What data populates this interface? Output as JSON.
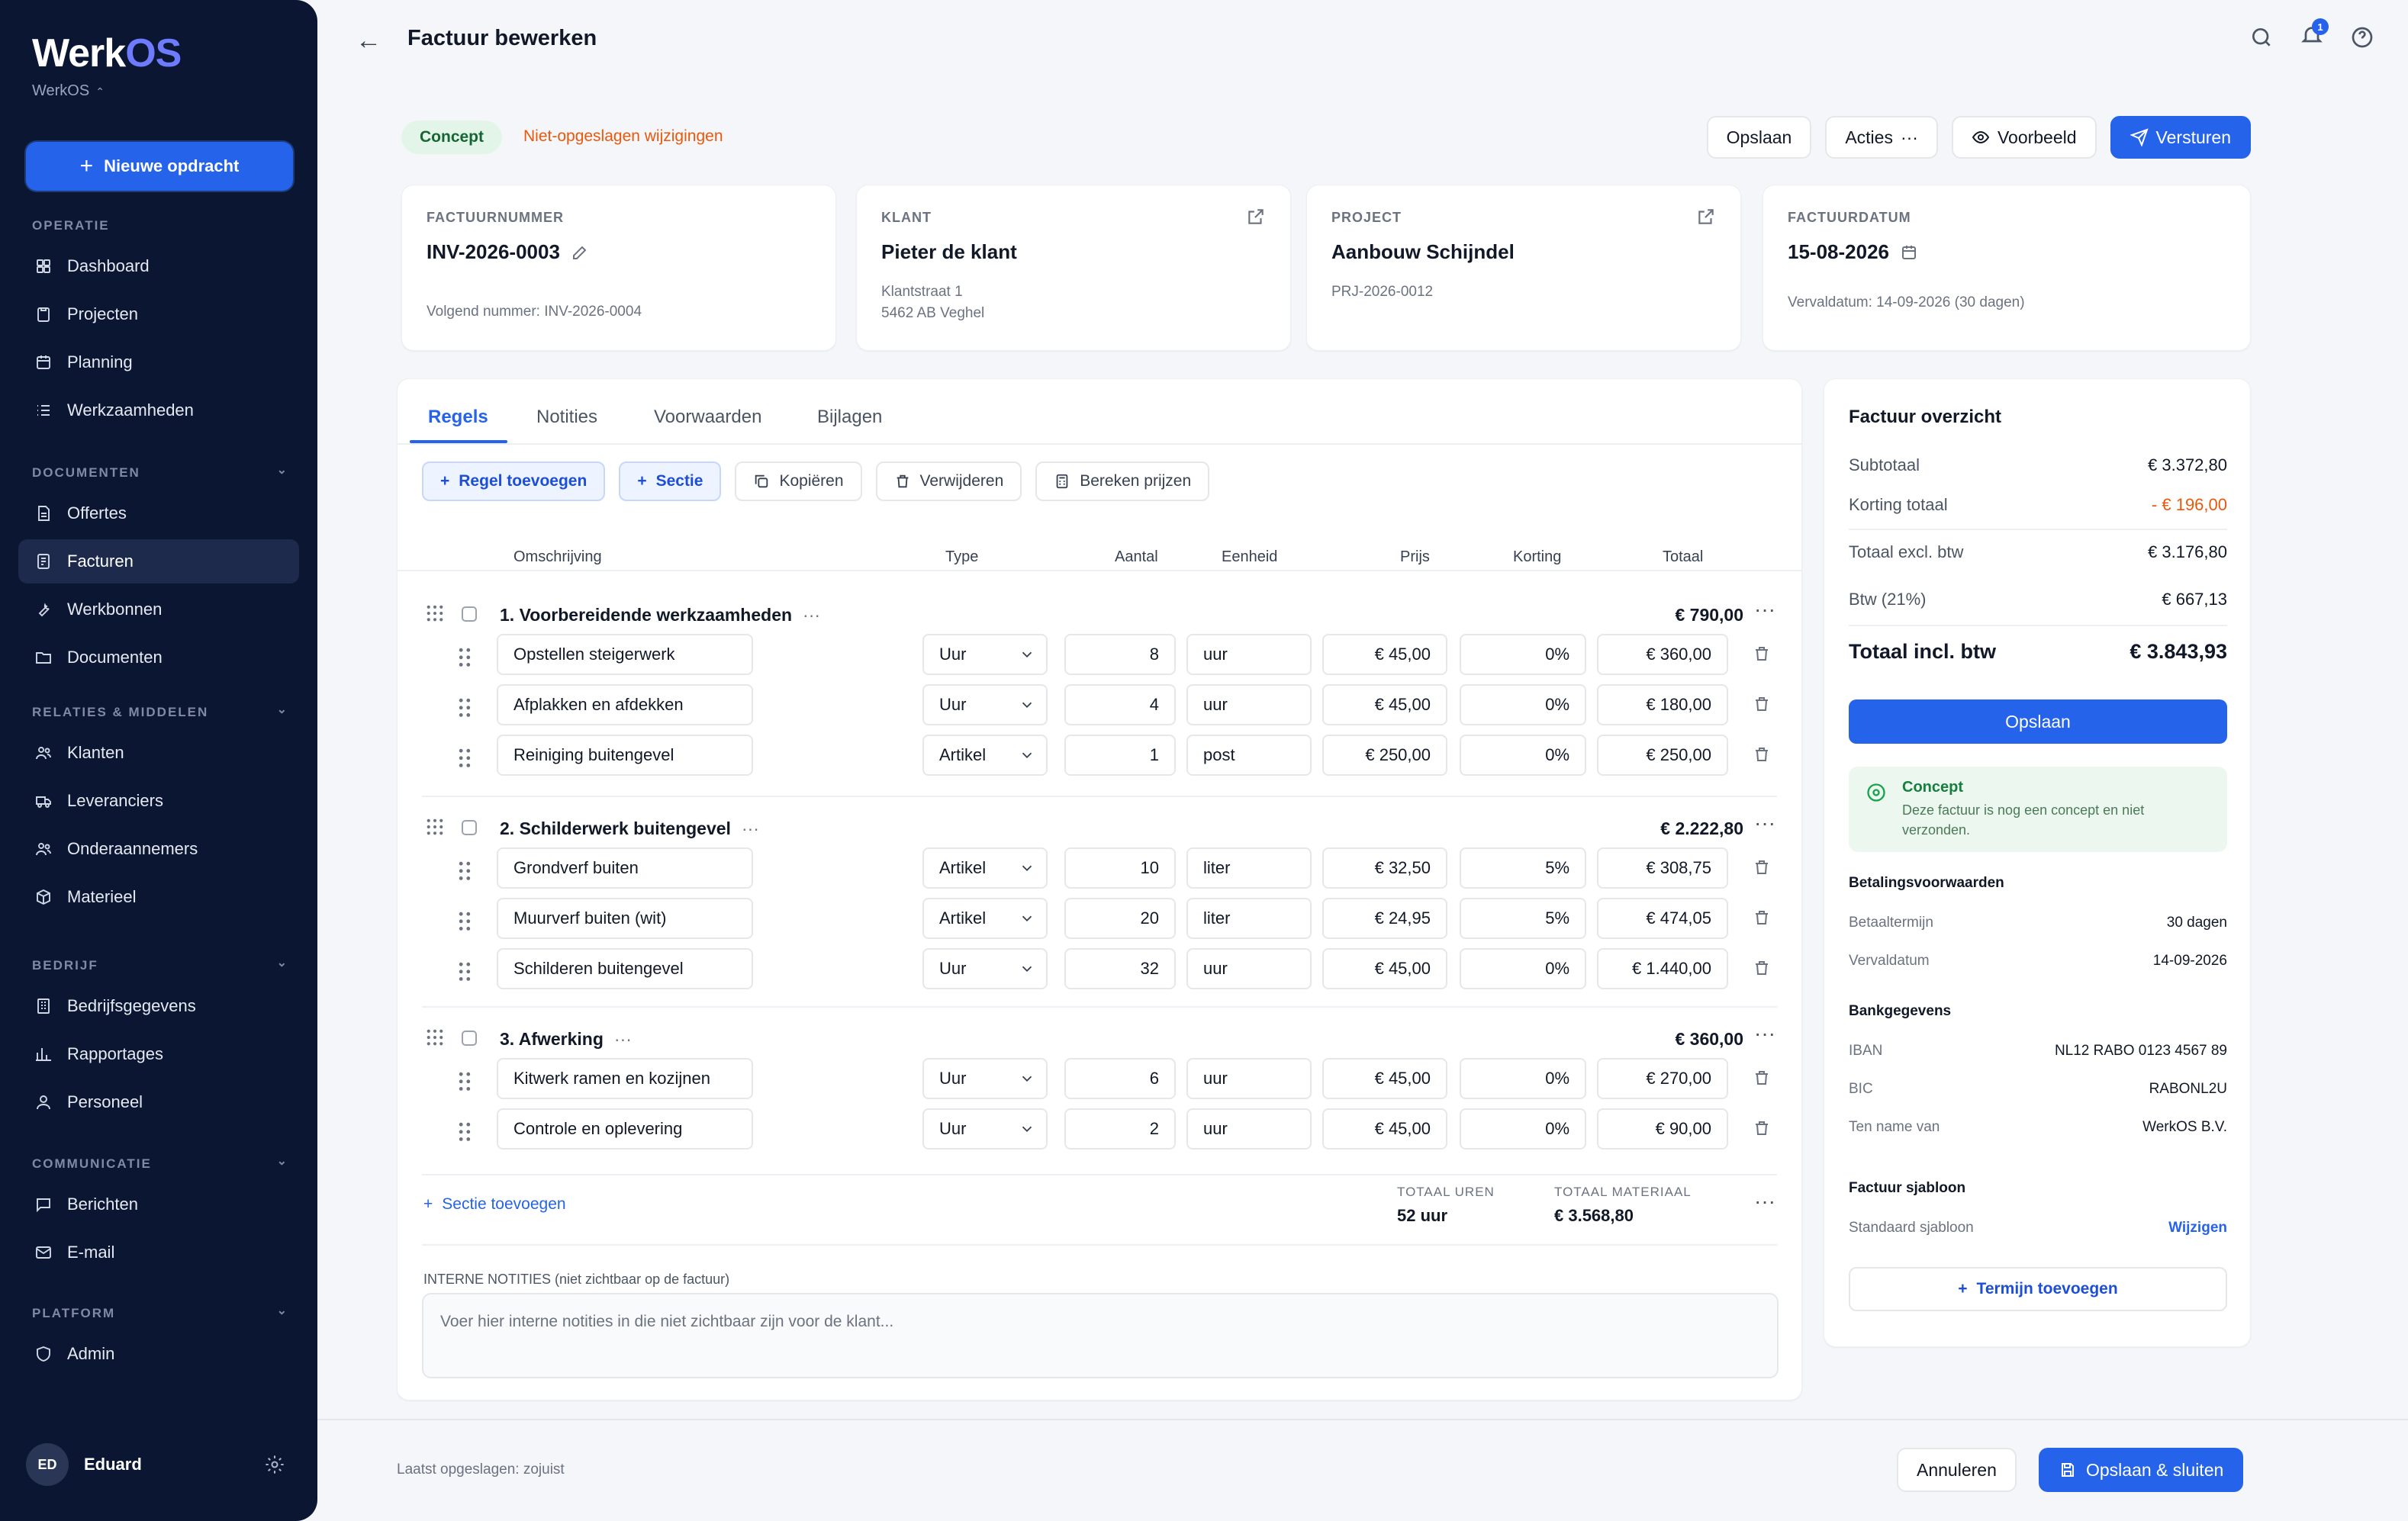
{
  "brand": {
    "logo_a": "Werk",
    "logo_b": "OS",
    "workspace": "WerkOS"
  },
  "sidebar": {
    "new_button": "Nieuwe opdracht",
    "sections": [
      {
        "title": "OPERATIE",
        "items": [
          {
            "label": "Dashboard",
            "icon": "grid-icon"
          },
          {
            "label": "Projecten",
            "icon": "clipboard-icon"
          },
          {
            "label": "Planning",
            "icon": "calendar-icon"
          },
          {
            "label": "Werkzaamheden",
            "icon": "list-icon"
          }
        ]
      },
      {
        "title": "DOCUMENTEN",
        "items": [
          {
            "label": "Offertes",
            "icon": "document-icon"
          },
          {
            "label": "Facturen",
            "icon": "invoice-icon"
          },
          {
            "label": "Werkbonnen",
            "icon": "wrench-icon"
          },
          {
            "label": "Documenten",
            "icon": "folder-icon"
          }
        ]
      },
      {
        "title": "RELATIES & MIDDELEN",
        "items": [
          {
            "label": "Klanten",
            "icon": "users-icon"
          },
          {
            "label": "Leveranciers",
            "icon": "truck-icon"
          },
          {
            "label": "Onderaannemers",
            "icon": "users-icon"
          },
          {
            "label": "Materieel",
            "icon": "box-icon"
          }
        ]
      },
      {
        "title": "BEDRIJF",
        "items": [
          {
            "label": "Bedrijfsgegevens",
            "icon": "building-icon"
          },
          {
            "label": "Rapportages",
            "icon": "chart-icon"
          },
          {
            "label": "Personeel",
            "icon": "person-icon"
          }
        ]
      },
      {
        "title": "COMMUNICATIE",
        "items": [
          {
            "label": "Berichten",
            "icon": "message-icon"
          },
          {
            "label": "E-mail",
            "icon": "mail-icon"
          }
        ]
      },
      {
        "title": "PLATFORM",
        "items": [
          {
            "label": "Admin",
            "icon": "shield-icon"
          }
        ]
      }
    ],
    "user": {
      "initials": "ED",
      "name": "Eduard"
    }
  },
  "header": {
    "title": "Factuur bewerken",
    "notification_count": "1"
  },
  "status": {
    "badge": "Concept",
    "unsaved": "Niet-opgeslagen wijzigingen"
  },
  "actions": {
    "save": "Opslaan",
    "acties": "Acties",
    "preview": "Voorbeeld",
    "send": "Versturen"
  },
  "info_cards": {
    "invoice_number": {
      "label": "FACTUURNUMMER",
      "value": "INV-2026-0003",
      "sub": "Volgend nummer: INV-2026-0004"
    },
    "client": {
      "label": "KLANT",
      "value": "Pieter de klant",
      "address1": "Klantstraat 1",
      "address2": "5462 AB Veghel"
    },
    "project": {
      "label": "PROJECT",
      "value": "Aanbouw Schijndel",
      "sub": "PRJ-2026-0012"
    },
    "date": {
      "label": "FACTUURDATUM",
      "value": "15-08-2026",
      "sub": "Vervaldatum: 14-09-2026 (30 dagen)"
    }
  },
  "tabs": [
    "Regels",
    "Notities",
    "Voorwaarden",
    "Bijlagen"
  ],
  "toolbar": {
    "add_line": "Regel toevoegen",
    "section": "Sectie",
    "copy": "Kopiëren",
    "delete": "Verwijderen",
    "calc": "Bereken prijzen"
  },
  "columns": {
    "desc": "Omschrijving",
    "type": "Type",
    "qty": "Aantal",
    "unit": "Eenheid",
    "price": "Prijs",
    "discount": "Korting",
    "total": "Totaal"
  },
  "sections": [
    {
      "name": "1. Voorbereidende werkzaamheden",
      "total": "€ 790,00",
      "lines": [
        {
          "desc": "Opstellen steigerwerk",
          "type": "Uur",
          "qty": "8",
          "unit": "uur",
          "price": "€ 45,00",
          "discount": "0%",
          "total": "€ 360,00"
        },
        {
          "desc": "Afplakken en afdekken",
          "type": "Uur",
          "qty": "4",
          "unit": "uur",
          "price": "€ 45,00",
          "discount": "0%",
          "total": "€ 180,00"
        },
        {
          "desc": "Reiniging buitengevel",
          "type": "Artikel",
          "qty": "1",
          "unit": "post",
          "price": "€ 250,00",
          "discount": "0%",
          "total": "€ 250,00"
        }
      ]
    },
    {
      "name": "2. Schilderwerk buitengevel",
      "total": "€ 2.222,80",
      "lines": [
        {
          "desc": "Grondverf buiten",
          "type": "Artikel",
          "qty": "10",
          "unit": "liter",
          "price": "€ 32,50",
          "discount": "5%",
          "total": "€ 308,75"
        },
        {
          "desc": "Muurverf buiten (wit)",
          "type": "Artikel",
          "qty": "20",
          "unit": "liter",
          "price": "€ 24,95",
          "discount": "5%",
          "total": "€ 474,05"
        },
        {
          "desc": "Schilderen buitengevel",
          "type": "Uur",
          "qty": "32",
          "unit": "uur",
          "price": "€ 45,00",
          "discount": "0%",
          "total": "€ 1.440,00"
        }
      ]
    },
    {
      "name": "3. Afwerking",
      "total": "€ 360,00",
      "lines": [
        {
          "desc": "Kitwerk ramen en kozijnen",
          "type": "Uur",
          "qty": "6",
          "unit": "uur",
          "price": "€ 45,00",
          "discount": "0%",
          "total": "€ 270,00"
        },
        {
          "desc": "Controle en oplevering",
          "type": "Uur",
          "qty": "2",
          "unit": "uur",
          "price": "€ 45,00",
          "discount": "0%",
          "total": "€ 90,00"
        }
      ]
    }
  ],
  "footer": {
    "add_section": "Sectie toevoegen",
    "hours_label": "TOTAAL UREN",
    "hours_value": "52 uur",
    "material_label": "TOTAAL MATERIAAL",
    "material_value": "€ 3.568,80"
  },
  "notes": {
    "label": "INTERNE NOTITIES (niet zichtbaar op de factuur)",
    "placeholder": "Voer hier interne notities in die niet zichtbaar zijn voor de klant..."
  },
  "summary": {
    "title": "Factuur overzicht",
    "subtotal_label": "Subtotaal",
    "subtotal": "€ 3.372,80",
    "discount_label": "Korting totaal",
    "discount": "- € 196,00",
    "excl_label": "Totaal excl. btw",
    "excl": "€ 3.176,80",
    "vat_label": "Btw (21%)",
    "vat": "€ 667,13",
    "incl_label": "Totaal incl. btw",
    "incl": "€ 3.843,93",
    "save": "Opslaan",
    "concept_title": "Concept",
    "concept_text": "Deze factuur is nog een concept en niet verzonden.",
    "payment_title": "Betalingsvoorwaarden",
    "term_label": "Betaaltermijn",
    "term": "30 dagen",
    "due_label": "Vervaldatum",
    "due": "14-09-2026",
    "bank_title": "Bankgegevens",
    "iban_label": "IBAN",
    "iban": "NL12 RABO 0123 4567 89",
    "bic_label": "BIC",
    "bic": "RABONL2U",
    "name_label": "Ten name van",
    "name": "WerkOS B.V.",
    "template_title": "Factuur sjabloon",
    "template_label": "Standaard sjabloon",
    "template_action": "Wijzigen",
    "add_term": "Termijn toevoegen"
  },
  "bottom": {
    "saved": "Laatst opgeslagen: zojuist",
    "cancel": "Annuleren",
    "save_close": "Opslaan & sluiten"
  }
}
